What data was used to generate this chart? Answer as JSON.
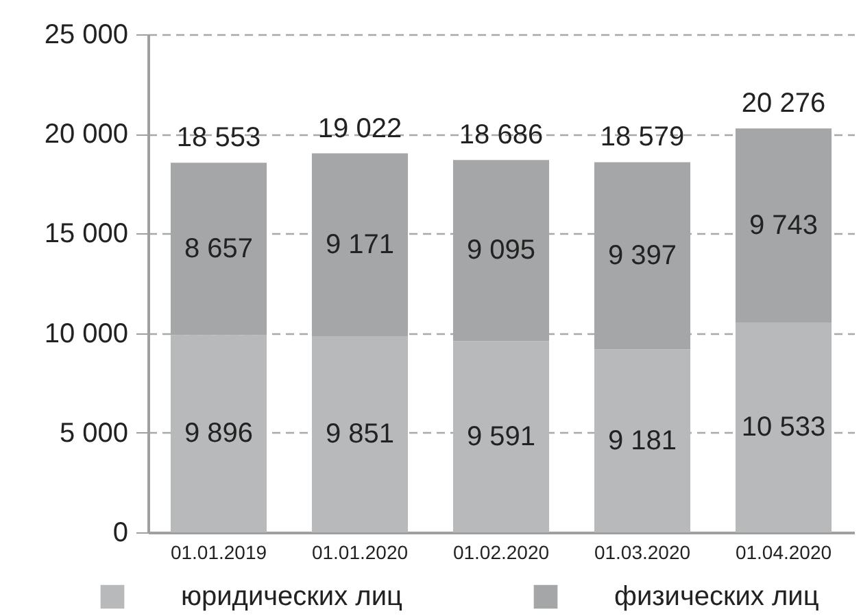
{
  "chart_data": {
    "type": "bar",
    "stacked": true,
    "categories": [
      "01.01.2019",
      "01.01.2020",
      "01.02.2020",
      "01.03.2020",
      "01.04.2020"
    ],
    "series": [
      {
        "name": "юридических лиц",
        "color": "#b8b9bb",
        "values": [
          9896,
          9851,
          9591,
          9181,
          10533
        ],
        "value_labels": [
          "9 896",
          "9 851",
          "9 591",
          "9 181",
          "10 533"
        ]
      },
      {
        "name": "физических лиц",
        "color": "#a5a6a8",
        "values": [
          8657,
          9171,
          9095,
          9397,
          9743
        ],
        "value_labels": [
          "8 657",
          "9 171",
          "9 095",
          "9 397",
          "9 743"
        ]
      }
    ],
    "totals": [
      "18 553",
      "19 022",
      "18 686",
      "18 579",
      "20 276"
    ],
    "ylim": [
      0,
      25000
    ],
    "yticks": [
      0,
      {
        "value": 5000,
        "label": "5 000"
      },
      {
        "value": 10000,
        "label": "10 000"
      },
      {
        "value": 15000,
        "label": "15 000"
      },
      {
        "value": 20000,
        "label": "20 000"
      },
      {
        "value": 25000,
        "label": "25 000"
      }
    ],
    "grid": "y",
    "legend": "bottom"
  }
}
